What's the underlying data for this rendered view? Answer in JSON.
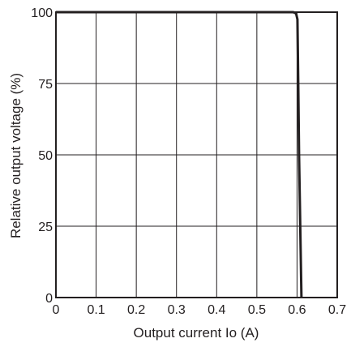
{
  "chart_data": {
    "type": "line",
    "title": "",
    "xlabel": "Output current Io (A)",
    "ylabel": "Relative output voltage (%)",
    "xlim": [
      0,
      0.7
    ],
    "ylim": [
      0,
      100
    ],
    "x_ticks": [
      0,
      0.1,
      0.2,
      0.3,
      0.4,
      0.5,
      0.6,
      0.7
    ],
    "x_tick_labels": [
      "0",
      "0.1",
      "0.2",
      "0.3",
      "0.4",
      "0.5",
      "0.6",
      "0.7"
    ],
    "y_ticks": [
      0,
      25,
      50,
      75,
      100
    ],
    "y_tick_labels": [
      "0",
      "25",
      "50",
      "75",
      "100"
    ],
    "grid": true,
    "legend": "none",
    "series": [
      {
        "color": "#231f20",
        "x": [
          0,
          0.59,
          0.595,
          0.598,
          0.601,
          0.603,
          0.605,
          0.608,
          0.611
        ],
        "y": [
          100,
          100,
          99.8,
          99.3,
          97.5,
          75,
          50,
          25,
          0
        ]
      }
    ]
  }
}
